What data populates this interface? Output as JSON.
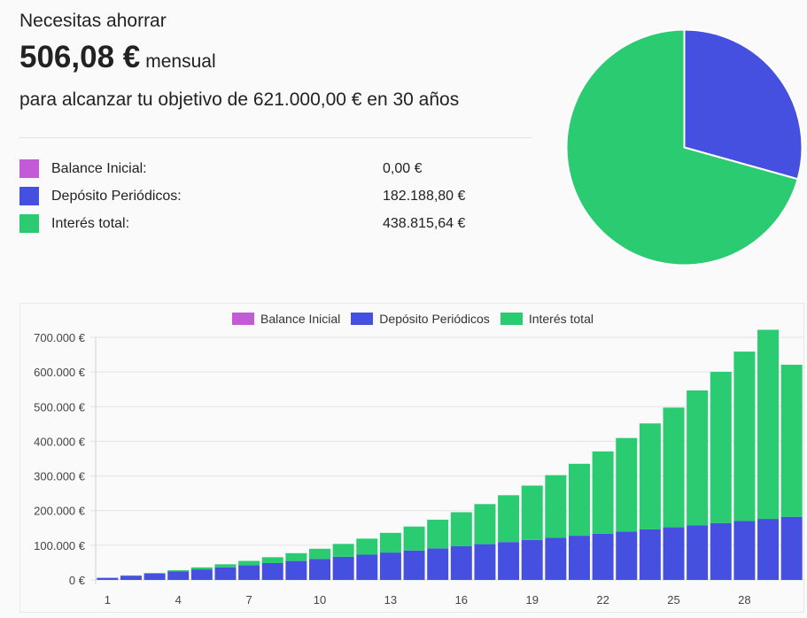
{
  "summary": {
    "headline": "Necesitas ahorrar",
    "amount": "506,08 €",
    "amount_unit": "mensual",
    "goal_line": "para alcanzar tu objetivo de 621.000,00 € en 30 años"
  },
  "breakdown": [
    {
      "label": "Balance Inicial:",
      "value": "0,00 €",
      "color": "#c35bd8"
    },
    {
      "label": "Depósito Periódicos:",
      "value": "182.188,80 €",
      "color": "#4650e0"
    },
    {
      "label": "Interés total:",
      "value": "438.815,64 €",
      "color": "#2bcb72"
    }
  ],
  "pie": {
    "colors": [
      "#c35bd8",
      "#4650e0",
      "#2bcb72"
    ],
    "values": [
      0,
      182188.8,
      438815.64
    ]
  },
  "chart_data": {
    "type": "bar",
    "stacked": true,
    "legend_position": "top",
    "grid": true,
    "categories": [
      "1",
      "2",
      "3",
      "4",
      "5",
      "6",
      "7",
      "8",
      "9",
      "10",
      "11",
      "12",
      "13",
      "14",
      "15",
      "16",
      "17",
      "18",
      "19",
      "20",
      "21",
      "22",
      "23",
      "24",
      "25",
      "26",
      "27",
      "28",
      "29",
      "30"
    ],
    "x_tick_labels": [
      "1",
      "4",
      "7",
      "10",
      "13",
      "16",
      "19",
      "22",
      "25",
      "28"
    ],
    "y_tick_labels": [
      "0 €",
      "100.000 €",
      "200.000 €",
      "300.000 €",
      "400.000 €",
      "500.000 €",
      "600.000 €",
      "700.000 €"
    ],
    "ylim": [
      0,
      700000
    ],
    "series": [
      {
        "name": "Balance Inicial",
        "color": "#c35bd8",
        "values": [
          0,
          0,
          0,
          0,
          0,
          0,
          0,
          0,
          0,
          0,
          0,
          0,
          0,
          0,
          0,
          0,
          0,
          0,
          0,
          0,
          0,
          0,
          0,
          0,
          0,
          0,
          0,
          0,
          0,
          0
        ]
      },
      {
        "name": "Depósito Periódicos",
        "color": "#4650e0",
        "values": [
          6073,
          12146,
          18219,
          24292,
          30365,
          36438,
          42510,
          48583,
          54656,
          60729,
          66802,
          72875,
          78948,
          85021,
          91094,
          97167,
          103240,
          109313,
          115386,
          121459,
          127532,
          133605,
          139678,
          145751,
          151824,
          157897,
          163970,
          170043,
          176116,
          182189
        ]
      },
      {
        "name": "Interés total",
        "color": "#2bcb72",
        "values": [
          200,
          900,
          2000,
          3600,
          5800,
          8700,
          12400,
          17000,
          22500,
          29200,
          37100,
          46300,
          56900,
          69000,
          82700,
          98200,
          115600,
          135100,
          156800,
          180900,
          207600,
          237200,
          269800,
          305800,
          345400,
          388800,
          436500,
          488800,
          545700,
          438816
        ]
      }
    ]
  }
}
